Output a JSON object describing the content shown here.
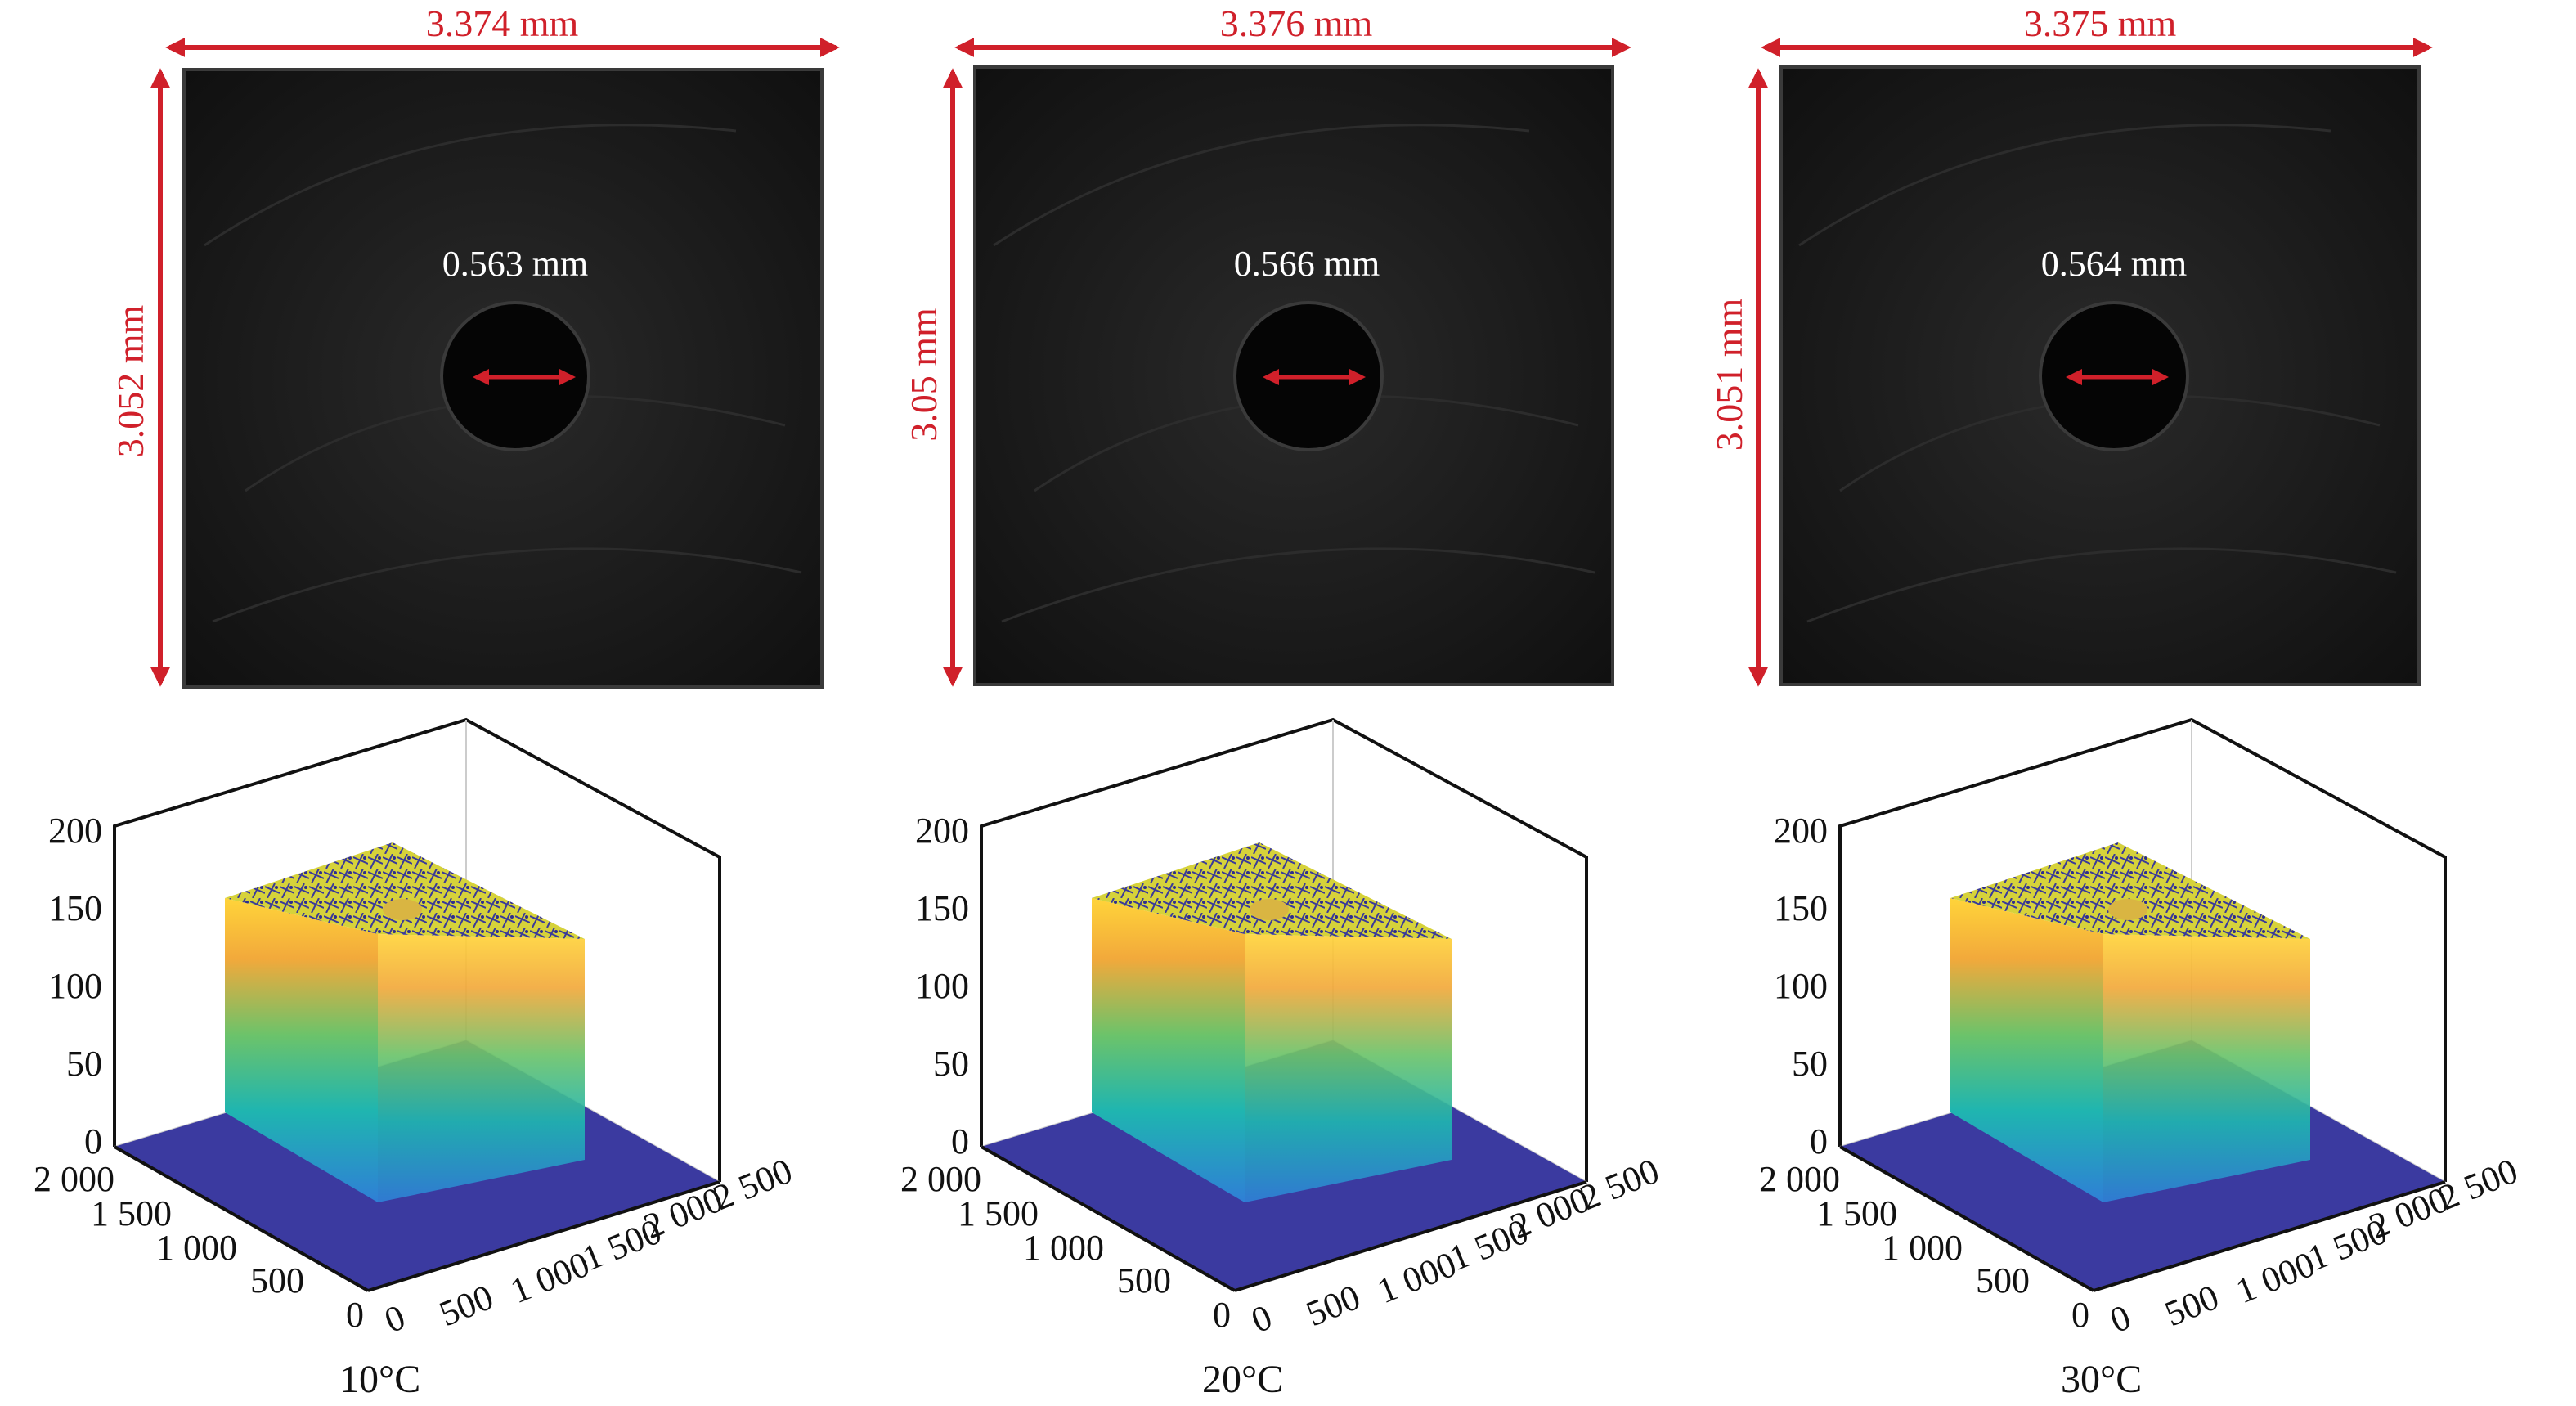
{
  "panels": [
    {
      "width_label": "3.374 mm",
      "height_label": "3.052 mm",
      "hole_label": "0.563 mm",
      "condition": "10°C"
    },
    {
      "width_label": "3.376 mm",
      "height_label": "3.05 mm",
      "hole_label": "0.566 mm",
      "condition": "20°C"
    },
    {
      "width_label": "3.375 mm",
      "height_label": "3.051 mm",
      "hole_label": "0.564 mm",
      "condition": "30°C"
    }
  ],
  "surface_plot": {
    "z_ticks": [
      "200",
      "150",
      "100",
      "50",
      "0"
    ],
    "y_ticks": [
      "2 000",
      "1 500",
      "1 000",
      "500",
      "0"
    ],
    "x_ticks": [
      "0",
      "500",
      "1 000",
      "1 500",
      "2 000",
      "2 500"
    ],
    "colormap": [
      "#3b2f9e",
      "#2f7fd6",
      "#1fb5b0",
      "#6cc36a",
      "#f2a93b",
      "#ffd43a"
    ]
  },
  "colors": {
    "dimension_arrow": "#d0202a",
    "micrograph_bg": "#151515",
    "plane_fill": "#3b3aa0"
  }
}
